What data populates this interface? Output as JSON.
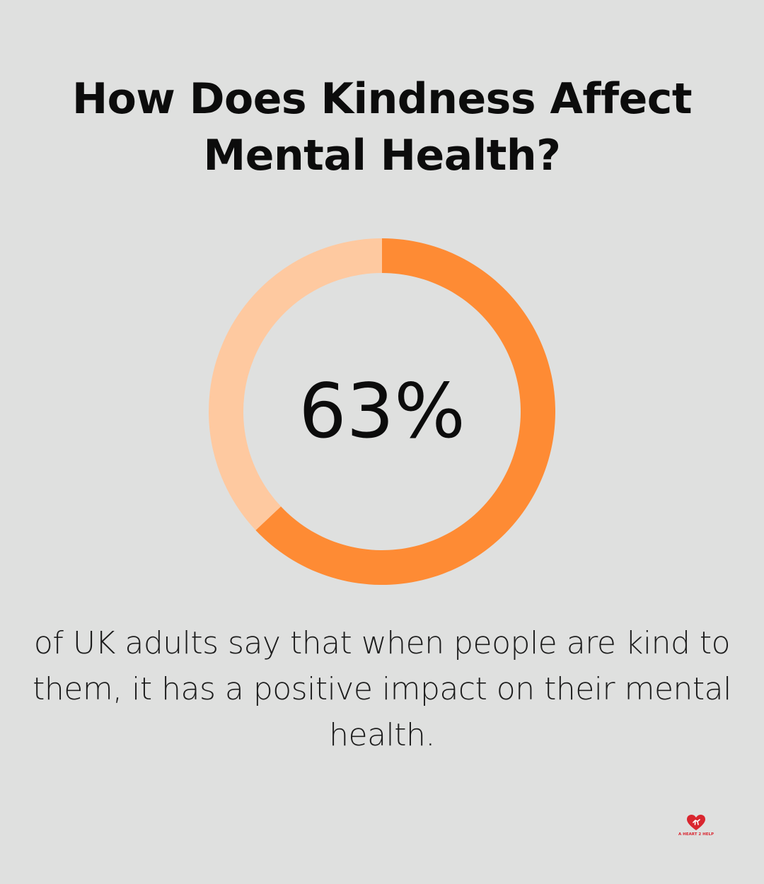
{
  "title": "How Does Kindness Affect Mental Health?",
  "chart_data": {
    "type": "pie",
    "variant": "donut",
    "value_label": "63%",
    "slices": [
      {
        "value": 63,
        "color": "#fe8b34"
      },
      {
        "value": 37,
        "color": "#fec9a0"
      }
    ]
  },
  "caption": "of UK adults say that when people are kind to them, it has a positive impact on their mental health.",
  "logo": {
    "text": "A HEART 2 HELP",
    "icon": "heart-icon",
    "color": "#d9262f"
  },
  "colors": {
    "background": "#dfe0df",
    "accent": "#fe8b34",
    "accent_light": "#fec9a0"
  }
}
